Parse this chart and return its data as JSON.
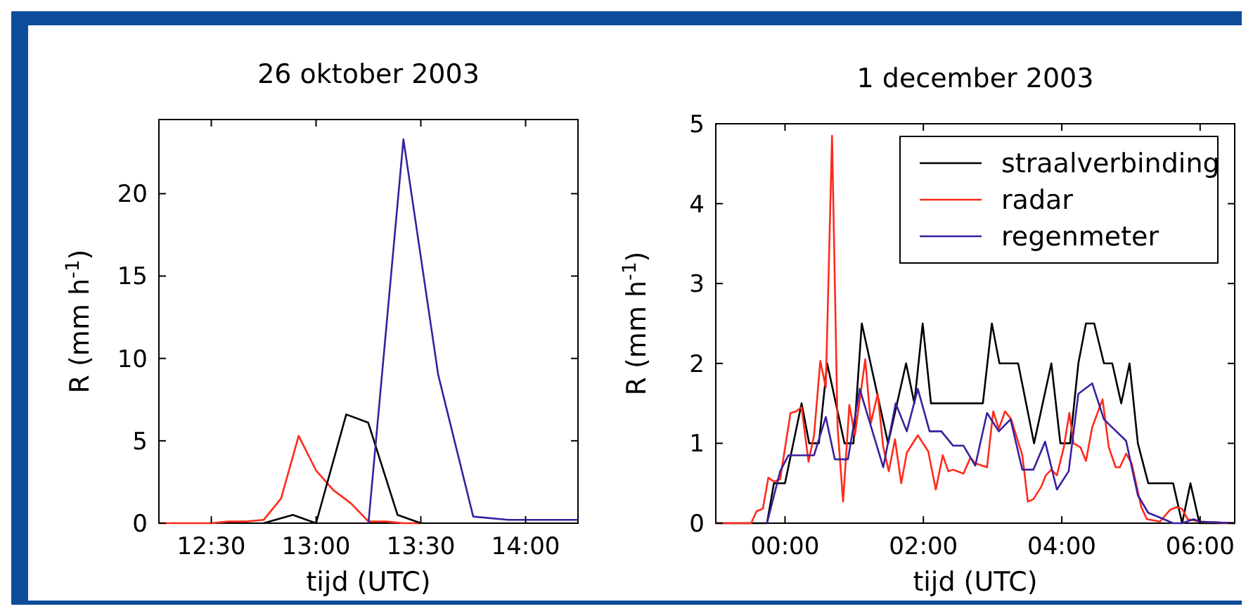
{
  "chart_data": [
    {
      "type": "line",
      "title": "26 oktober 2003",
      "xlabel": "tijd (UTC)",
      "ylabel": "R  (mm h$^{-1}$)",
      "xlim": [
        12.25,
        14.25
      ],
      "ylim": [
        0,
        24.5
      ],
      "xticks": [
        {
          "value": 12.5,
          "label": "12:30"
        },
        {
          "value": 13,
          "label": "13:00"
        },
        {
          "value": 13.5,
          "label": "13:30"
        },
        {
          "value": 14,
          "label": "14:00"
        }
      ],
      "yticks": [
        0,
        5,
        10,
        15,
        20
      ],
      "grid": false,
      "legend": false,
      "line_style": "solid",
      "marker": "none",
      "series": [
        {
          "color": "#ff2a1a",
          "x": [
            12.25,
            12.333,
            12.417,
            12.5,
            12.583,
            12.667,
            12.75,
            12.833,
            12.917,
            13,
            13.083,
            13.167,
            13.25,
            13.333,
            13.417,
            13.5
          ],
          "values": [
            0,
            0,
            0,
            0,
            0.1,
            0.1,
            0.2,
            1.5,
            5.3,
            3.2,
            2.0,
            1.2,
            0.1,
            0.1,
            0,
            0
          ]
        },
        {
          "color": "#000000",
          "x": [
            12.75,
            12.889,
            13.0,
            13.144,
            13.249,
            13.389,
            13.5
          ],
          "values": [
            0,
            0.5,
            0,
            6.6,
            6.1,
            0.5,
            0
          ]
        },
        {
          "color": "#3a1f9e",
          "x": [
            13.25,
            13.417,
            13.583,
            13.75,
            13.917,
            14.25
          ],
          "values": [
            0,
            23.3,
            9.0,
            0.4,
            0.2,
            0.2
          ]
        }
      ]
    },
    {
      "type": "line",
      "title": "1 december 2003",
      "xlabel": "tijd (UTC)",
      "ylabel": "R  (mm h$^{-1}$)",
      "xlim": [
        -1,
        6.5
      ],
      "ylim": [
        0,
        5
      ],
      "xticks": [
        {
          "value": 0,
          "label": "00:00"
        },
        {
          "value": 2,
          "label": "02:00"
        },
        {
          "value": 4,
          "label": "04:00"
        },
        {
          "value": 6,
          "label": "06:00"
        }
      ],
      "yticks": [
        0,
        1,
        2,
        3,
        4,
        5
      ],
      "grid": false,
      "legend": "top right",
      "line_style": "solid",
      "marker": "none",
      "series": [
        {
          "name": "straalverbinding",
          "color": "#000000",
          "x": [
            -1,
            -0.26,
            -0.16,
            0,
            0.24,
            0.35,
            0.49,
            0.61,
            0.86,
            0.99,
            1.11,
            1.49,
            1.75,
            1.87,
            1.99,
            2.11,
            2.86,
            2.99,
            3.1,
            3.37,
            3.6,
            3.85,
            3.98,
            4.12,
            4.24,
            4.35,
            4.47,
            4.61,
            4.73,
            4.86,
            4.98,
            5.1,
            5.25,
            5.61,
            5.74,
            5.86,
            5.99,
            6.5
          ],
          "values": [
            0,
            0,
            0.5,
            0.5,
            1.5,
            1.0,
            1.0,
            2.0,
            1.0,
            1.0,
            2.5,
            1.0,
            2.0,
            1.5,
            2.5,
            1.5,
            1.5,
            2.5,
            2.0,
            2.0,
            1.0,
            2.0,
            1.0,
            1.0,
            2.0,
            2.5,
            2.5,
            2.0,
            2.0,
            1.5,
            2.0,
            1.0,
            0.5,
            0.5,
            0,
            0.5,
            0,
            0
          ]
        },
        {
          "name": "radar",
          "color": "#ff2a1a",
          "x": [
            -1,
            -0.49,
            -0.41,
            -0.32,
            -0.24,
            -0.16,
            -0.07,
            0.08,
            0.16,
            0.24,
            0.34,
            0.42,
            0.51,
            0.59,
            0.68,
            0.76,
            0.84,
            0.93,
            1.01,
            1.16,
            1.24,
            1.34,
            1.42,
            1.5,
            1.59,
            1.68,
            1.76,
            1.92,
            2.07,
            2.18,
            2.28,
            2.36,
            2.43,
            2.58,
            2.68,
            2.75,
            2.85,
            2.92,
            3.01,
            3.09,
            3.18,
            3.27,
            3.43,
            3.51,
            3.59,
            3.7,
            3.77,
            3.85,
            3.93,
            4.03,
            4.11,
            4.17,
            4.27,
            4.35,
            4.44,
            4.59,
            4.68,
            4.78,
            4.84,
            4.93,
            5.01,
            5.15,
            5.23,
            5.42,
            5.57,
            5.66,
            5.74,
            5.82,
            5.99,
            6.5
          ],
          "values": [
            0,
            0,
            0.15,
            0.18,
            0.57,
            0.52,
            0.55,
            1.38,
            1.4,
            1.45,
            0.77,
            1.1,
            2.03,
            1.7,
            4.85,
            1.2,
            0.27,
            1.48,
            1.1,
            2.05,
            1.25,
            1.62,
            0.95,
            0.65,
            1.05,
            0.5,
            0.88,
            1.1,
            0.9,
            0.42,
            0.85,
            0.65,
            0.67,
            0.62,
            0.82,
            0.75,
            0.72,
            0.7,
            1.4,
            1.18,
            1.4,
            1.3,
            0.85,
            0.27,
            0.3,
            0.45,
            0.6,
            0.67,
            0.6,
            0.95,
            1.38,
            1.0,
            0.95,
            0.78,
            1.2,
            1.55,
            0.95,
            0.7,
            0.7,
            0.87,
            0.75,
            0.2,
            0.05,
            0.02,
            0.17,
            0.2,
            0.18,
            0.05,
            0.02,
            0
          ]
        },
        {
          "name": "regenmeter",
          "color": "#3a1f9e",
          "x": [
            -0.26,
            -0.07,
            0.05,
            0.42,
            0.59,
            0.72,
            0.91,
            1.08,
            1.42,
            1.6,
            1.76,
            1.92,
            2.09,
            2.26,
            2.43,
            2.58,
            2.75,
            2.92,
            3.09,
            3.26,
            3.43,
            3.59,
            3.76,
            3.93,
            4.1,
            4.24,
            4.44,
            4.61,
            4.93,
            5.1,
            5.25,
            5.42,
            5.61,
            5.74,
            5.91,
            5.99,
            6.5
          ],
          "values": [
            0,
            0.65,
            0.85,
            0.85,
            1.33,
            0.8,
            0.8,
            1.68,
            0.7,
            1.5,
            1.15,
            1.68,
            1.15,
            1.15,
            0.97,
            0.97,
            0.72,
            1.38,
            1.15,
            1.3,
            0.67,
            0.67,
            1.02,
            0.42,
            0.65,
            1.62,
            1.75,
            1.3,
            1.03,
            0.35,
            0.13,
            0.07,
            0,
            0,
            0.05,
            0.02,
            0
          ]
        }
      ]
    }
  ]
}
